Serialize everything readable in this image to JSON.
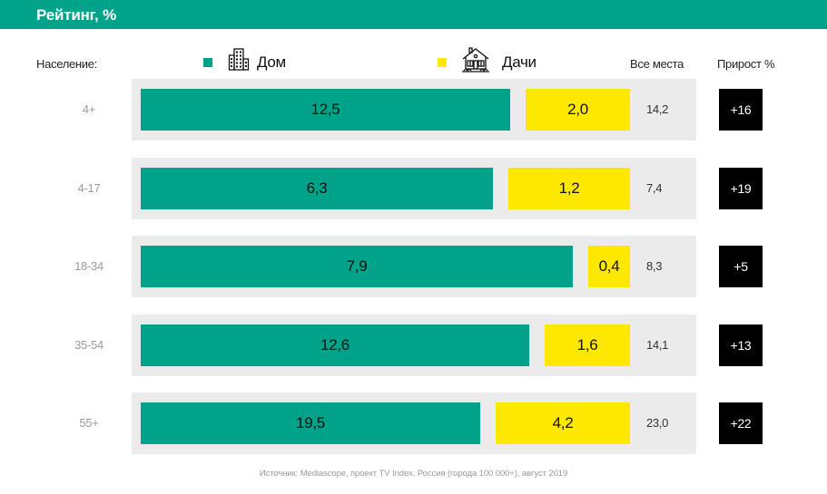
{
  "header": {
    "title": "Рейтинг, %"
  },
  "columns": {
    "population": "Население:",
    "total": "Все места",
    "growth": "Прирост %"
  },
  "legend": [
    {
      "label": "Дом",
      "color": "#00a38a",
      "icon": "apartment-building-icon"
    },
    {
      "label": "Дачи",
      "color": "#ffe800",
      "icon": "country-house-icon"
    }
  ],
  "chart_data": {
    "type": "bar",
    "orientation": "horizontal",
    "title": "Рейтинг, %",
    "categories": [
      "4+",
      "4-17",
      "18-34",
      "35-54",
      "55+"
    ],
    "series": [
      {
        "name": "Дом",
        "color": "#00a38a",
        "values": [
          12.5,
          6.3,
          7.9,
          12.6,
          19.5
        ],
        "labels": [
          "12,5",
          "6,3",
          "7,9",
          "12,6",
          "19,5"
        ]
      },
      {
        "name": "Дачи",
        "color": "#ffe800",
        "values": [
          2.0,
          1.2,
          0.4,
          1.6,
          4.2
        ],
        "labels": [
          "2,0",
          "1,2",
          "0,4",
          "1,6",
          "4,2"
        ]
      }
    ],
    "totals": {
      "name": "Все места",
      "values": [
        14.2,
        7.4,
        8.3,
        14.1,
        23.0
      ],
      "labels": [
        "14,2",
        "7,4",
        "8,3",
        "14,1",
        "23,0"
      ]
    },
    "growth": {
      "name": "Прирост %",
      "values": [
        16,
        19,
        5,
        13,
        22
      ],
      "labels": [
        "+16",
        "+19",
        "+5",
        "+13",
        "+22"
      ]
    },
    "xlabel": "",
    "ylabel": "Население:",
    "legend_position": "top",
    "grid": false
  },
  "rows": [
    {
      "label": "4+",
      "home": "12,5",
      "dacha": "2,0",
      "total": "14,2",
      "growth": "+16"
    },
    {
      "label": "4-17",
      "home": "6,3",
      "dacha": "1,2",
      "total": "7,4",
      "growth": "+19"
    },
    {
      "label": "18-34",
      "home": "7,9",
      "dacha": "0,4",
      "total": "8,3",
      "growth": "+5"
    },
    {
      "label": "35-54",
      "home": "12,6",
      "dacha": "1,6",
      "total": "14,1",
      "growth": "+13"
    },
    {
      "label": "55+",
      "home": "19,5",
      "dacha": "4,2",
      "total": "23,0",
      "growth": "+22"
    }
  ],
  "source": "Источник: Mediascope, проект TV Index, Россия (города 100 000+), август 2019"
}
